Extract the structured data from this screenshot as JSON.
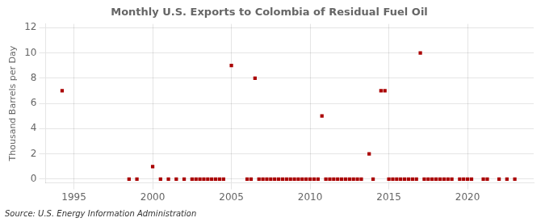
{
  "chart_data": {
    "type": "scatter",
    "title": "Monthly U.S. Exports to Colombia of Residual Fuel Oil",
    "ylabel": "Thousand Barrels per Day",
    "annotation": "Source: U.S. Energy Information Administration",
    "color": "#aa0000",
    "marker": "square",
    "grid": true,
    "xlim": [
      1993.2,
      2024.2
    ],
    "ylim": [
      -0.3,
      12.3
    ],
    "xticks": [
      1995,
      2000,
      2005,
      2010,
      2015,
      2020
    ],
    "yticks": [
      0,
      2,
      4,
      6,
      8,
      10,
      12
    ],
    "x": [
      1994.25,
      1998.5,
      1999.0,
      2000.0,
      2000.5,
      2001.0,
      2001.5,
      2002.0,
      2002.5,
      2002.75,
      2003.0,
      2003.25,
      2003.5,
      2003.75,
      2004.0,
      2004.25,
      2004.5,
      2005.0,
      2006.0,
      2006.25,
      2006.5,
      2006.75,
      2007.0,
      2007.25,
      2007.5,
      2007.75,
      2008.0,
      2008.25,
      2008.5,
      2008.75,
      2009.0,
      2009.25,
      2009.5,
      2009.75,
      2010.0,
      2010.25,
      2010.5,
      2010.75,
      2011.0,
      2011.25,
      2011.5,
      2011.75,
      2012.0,
      2012.25,
      2012.5,
      2012.75,
      2013.0,
      2013.25,
      2013.75,
      2014.0,
      2014.5,
      2014.75,
      2015.0,
      2015.25,
      2015.5,
      2015.75,
      2016.0,
      2016.25,
      2016.5,
      2016.75,
      2017.0,
      2017.25,
      2017.5,
      2017.75,
      2018.0,
      2018.25,
      2018.5,
      2018.75,
      2019.0,
      2019.5,
      2019.75,
      2020.0,
      2020.25,
      2021.0,
      2021.25,
      2022.0,
      2022.5,
      2023.0
    ],
    "values": [
      7.0,
      0.0,
      0.0,
      1.0,
      0.0,
      0.0,
      0.0,
      0.0,
      0.0,
      0.0,
      0.0,
      0.0,
      0.0,
      0.0,
      0.0,
      0.0,
      0.0,
      9.0,
      0.0,
      0.0,
      8.0,
      0.0,
      0.0,
      0.0,
      0.0,
      0.0,
      0.0,
      0.0,
      0.0,
      0.0,
      0.0,
      0.0,
      0.0,
      0.0,
      0.0,
      0.0,
      0.0,
      5.0,
      0.0,
      0.0,
      0.0,
      0.0,
      0.0,
      0.0,
      0.0,
      0.0,
      0.0,
      0.0,
      2.0,
      0.0,
      7.0,
      7.0,
      0.0,
      0.0,
      0.0,
      0.0,
      0.0,
      0.0,
      0.0,
      0.0,
      10.0,
      0.0,
      0.0,
      0.0,
      0.0,
      0.0,
      0.0,
      0.0,
      0.0,
      0.0,
      0.0,
      0.0,
      0.0,
      0.0,
      0.0,
      0.0,
      0.0,
      0.0
    ]
  }
}
